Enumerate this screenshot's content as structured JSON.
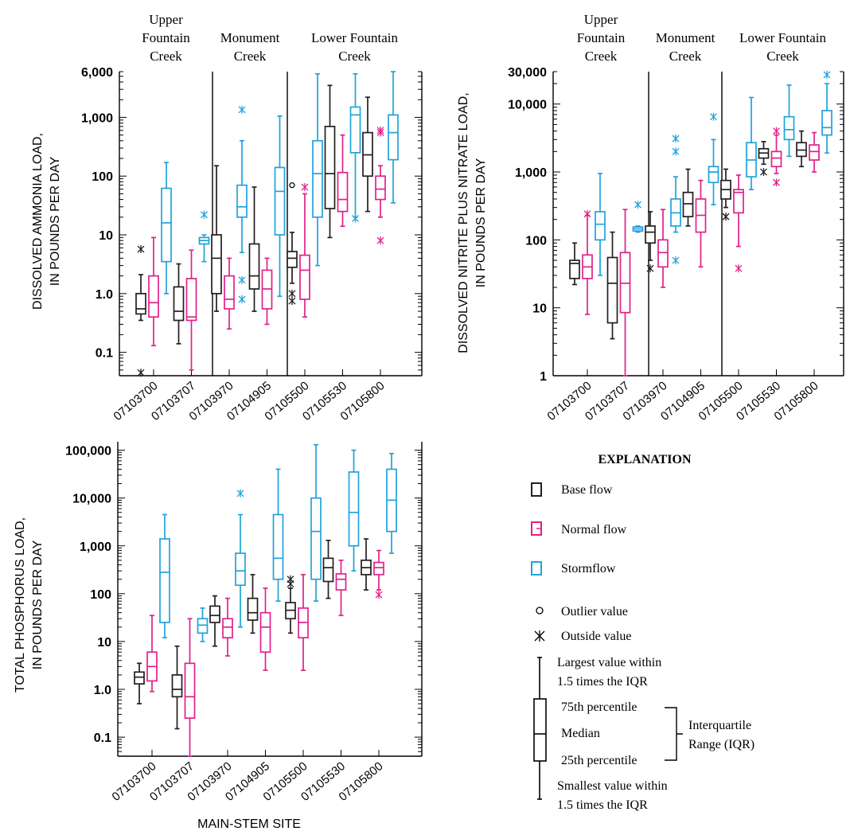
{
  "colors": {
    "base": "#231f20",
    "normal": "#e0218a",
    "storm": "#1fa3dc",
    "axis": "#000000"
  },
  "groups": [
    "Upper Fountain Creek",
    "Monument Creek",
    "Lower Fountain Creek"
  ],
  "sites": [
    "07103700",
    "07103707",
    "07103970",
    "07104905",
    "07105500",
    "07105530",
    "07105800"
  ],
  "xlabel": "MAIN-STEM SITE",
  "explanation": {
    "title": "EXPLANATION",
    "base": "Base flow",
    "normal": "Normal flow",
    "storm": "Stormflow",
    "outlier": "Outlier value",
    "outside": "Outside value",
    "largest": [
      "Largest value within",
      "1.5 times the IQR"
    ],
    "p75": "75th percentile",
    "median": "Median",
    "p25": "25th percentile",
    "smallest": [
      "Smallest value within",
      "1.5 times the IQR"
    ],
    "iqr": [
      "Interquartile",
      "Range (IQR)"
    ]
  },
  "chart_data": [
    {
      "type": "boxplot",
      "ylabel": [
        "DISSOLVED AMMONIA LOAD,",
        "IN POUNDS PER DAY"
      ],
      "yscale": "log",
      "ylim": [
        0.04,
        6000
      ],
      "yticks": [
        0.1,
        1,
        10,
        100,
        1000,
        6000
      ],
      "yticklabels": [
        "0.1",
        "1.0",
        "10",
        "100",
        "1,000",
        "6,000"
      ],
      "group_headers": true,
      "boxes": [
        {
          "site": "07103700",
          "flow": "base",
          "wlo": 0.35,
          "q1": 0.45,
          "med": 0.55,
          "q3": 1.0,
          "whi": 2.1,
          "outside": [
            5.7,
            0.045
          ],
          "outlier": []
        },
        {
          "site": "07103700",
          "flow": "normal",
          "wlo": 0.13,
          "q1": 0.4,
          "med": 0.7,
          "q3": 2.0,
          "whi": 9.0,
          "outside": [],
          "outlier": []
        },
        {
          "site": "07103700",
          "flow": "storm",
          "wlo": 1.0,
          "q1": 3.5,
          "med": 16,
          "q3": 62,
          "whi": 170,
          "outside": [],
          "outlier": []
        },
        {
          "site": "07103707",
          "flow": "base",
          "wlo": 0.14,
          "q1": 0.35,
          "med": 0.5,
          "q3": 1.3,
          "whi": 3.2,
          "outside": [],
          "outlier": []
        },
        {
          "site": "07103707",
          "flow": "normal",
          "wlo": 0.05,
          "q1": 0.35,
          "med": 0.4,
          "q3": 1.8,
          "whi": 5.5,
          "outside": [],
          "outlier": []
        },
        {
          "site": "07103707",
          "flow": "storm",
          "wlo": 3.5,
          "q1": 7.0,
          "med": 8.0,
          "q3": 9.0,
          "whi": 10,
          "outside": [
            22
          ],
          "outlier": []
        },
        {
          "site": "07103970",
          "flow": "base",
          "wlo": 0.5,
          "q1": 1.0,
          "med": 4.0,
          "q3": 10,
          "whi": 150,
          "outside": [],
          "outlier": []
        },
        {
          "site": "07103970",
          "flow": "normal",
          "wlo": 0.25,
          "q1": 0.55,
          "med": 0.8,
          "q3": 2.0,
          "whi": 4.0,
          "outside": [],
          "outlier": []
        },
        {
          "site": "07103970",
          "flow": "storm",
          "wlo": 5.0,
          "q1": 20,
          "med": 30,
          "q3": 70,
          "whi": 400,
          "outside": [
            1350,
            1.7,
            0.8
          ],
          "outlier": []
        },
        {
          "site": "07104905",
          "flow": "base",
          "wlo": 0.5,
          "q1": 1.2,
          "med": 2.0,
          "q3": 7.0,
          "whi": 65,
          "outside": [],
          "outlier": []
        },
        {
          "site": "07104905",
          "flow": "normal",
          "wlo": 0.3,
          "q1": 0.55,
          "med": 1.2,
          "q3": 2.5,
          "whi": 4.0,
          "outside": [],
          "outlier": []
        },
        {
          "site": "07104905",
          "flow": "storm",
          "wlo": 0.9,
          "q1": 10,
          "med": 55,
          "q3": 140,
          "whi": 1050,
          "outside": [],
          "outlier": []
        },
        {
          "site": "07105500",
          "flow": "base",
          "wlo": 1.5,
          "q1": 2.8,
          "med": 4.0,
          "q3": 5.2,
          "whi": 11,
          "outside": [
            1.0,
            0.75
          ],
          "outlier": [
            70
          ]
        },
        {
          "site": "07105500",
          "flow": "normal",
          "wlo": 0.4,
          "q1": 0.8,
          "med": 2.5,
          "q3": 4.5,
          "whi": 50,
          "outside": [
            65
          ],
          "outlier": []
        },
        {
          "site": "07105500",
          "flow": "storm",
          "wlo": 3.0,
          "q1": 20,
          "med": 110,
          "q3": 400,
          "whi": 5500,
          "outside": [],
          "outlier": []
        },
        {
          "site": "07105530",
          "flow": "base",
          "wlo": 9.0,
          "q1": 28,
          "med": 110,
          "q3": 700,
          "whi": 3500,
          "outside": [],
          "outlier": []
        },
        {
          "site": "07105530",
          "flow": "normal",
          "wlo": 14,
          "q1": 25,
          "med": 40,
          "q3": 115,
          "whi": 500,
          "outside": [],
          "outlier": []
        },
        {
          "site": "07105530",
          "flow": "storm",
          "wlo": 20,
          "q1": 250,
          "med": 1100,
          "q3": 1500,
          "whi": 5500,
          "outside": [
            19
          ],
          "outlier": []
        },
        {
          "site": "07105800",
          "flow": "base",
          "wlo": 25,
          "q1": 100,
          "med": 230,
          "q3": 550,
          "whi": 2200,
          "outside": [],
          "outlier": []
        },
        {
          "site": "07105800",
          "flow": "normal",
          "wlo": 20,
          "q1": 40,
          "med": 60,
          "q3": 100,
          "whi": 150,
          "outside": [
            600,
            550,
            8.0
          ],
          "outlier": []
        },
        {
          "site": "07105800",
          "flow": "storm",
          "wlo": 35,
          "q1": 190,
          "med": 550,
          "q3": 1100,
          "whi": 6000,
          "outside": [],
          "outlier": []
        }
      ]
    },
    {
      "type": "boxplot",
      "ylabel": [
        "DISSOLVED NITRITE PLUS NITRATE LOAD,",
        "IN POUNDS PER DAY"
      ],
      "yscale": "log",
      "ylim": [
        1,
        30000
      ],
      "yticks": [
        1,
        10,
        100,
        1000,
        10000,
        30000
      ],
      "yticklabels": [
        "1",
        "10",
        "100",
        "1,000",
        "10,000",
        "30,000"
      ],
      "group_headers": true,
      "boxes": [
        {
          "site": "07103700",
          "flow": "base",
          "wlo": 22,
          "q1": 27,
          "med": 45,
          "q3": 50,
          "whi": 90,
          "outside": [],
          "outlier": []
        },
        {
          "site": "07103700",
          "flow": "normal",
          "wlo": 8.0,
          "q1": 27,
          "med": 40,
          "q3": 60,
          "whi": 230,
          "outside": [
            240
          ],
          "outlier": []
        },
        {
          "site": "07103700",
          "flow": "storm",
          "wlo": 30,
          "q1": 100,
          "med": 170,
          "q3": 260,
          "whi": 950,
          "outside": [],
          "outlier": []
        },
        {
          "site": "07103707",
          "flow": "base",
          "wlo": 3.5,
          "q1": 6.0,
          "med": 23,
          "q3": 55,
          "whi": 130,
          "outside": [],
          "outlier": []
        },
        {
          "site": "07103707",
          "flow": "normal",
          "wlo": 1.0,
          "q1": 8.5,
          "med": 23,
          "q3": 65,
          "whi": 280,
          "outside": [],
          "outlier": []
        },
        {
          "site": "07103707",
          "flow": "storm",
          "wlo": 130,
          "q1": 135,
          "med": 145,
          "q3": 155,
          "whi": 160,
          "outside": [
            330
          ],
          "outlier": []
        },
        {
          "site": "07103970",
          "flow": "base",
          "wlo": 50,
          "q1": 90,
          "med": 130,
          "q3": 160,
          "whi": 260,
          "outside": [
            38
          ],
          "outlier": []
        },
        {
          "site": "07103970",
          "flow": "normal",
          "wlo": 20,
          "q1": 40,
          "med": 65,
          "q3": 100,
          "whi": 280,
          "outside": [],
          "outlier": []
        },
        {
          "site": "07103970",
          "flow": "storm",
          "wlo": 130,
          "q1": 160,
          "med": 250,
          "q3": 400,
          "whi": 850,
          "outside": [
            3100,
            2000,
            50
          ],
          "outlier": []
        },
        {
          "site": "07104905",
          "flow": "base",
          "wlo": 160,
          "q1": 220,
          "med": 340,
          "q3": 500,
          "whi": 1100,
          "outside": [],
          "outlier": []
        },
        {
          "site": "07104905",
          "flow": "normal",
          "wlo": 40,
          "q1": 130,
          "med": 230,
          "q3": 400,
          "whi": 750,
          "outside": [],
          "outlier": []
        },
        {
          "site": "07104905",
          "flow": "storm",
          "wlo": 330,
          "q1": 700,
          "med": 1000,
          "q3": 1200,
          "whi": 3000,
          "outside": [
            6500
          ],
          "outlier": []
        },
        {
          "site": "07105500",
          "flow": "base",
          "wlo": 300,
          "q1": 400,
          "med": 550,
          "q3": 750,
          "whi": 1100,
          "outside": [
            220
          ],
          "outlier": []
        },
        {
          "site": "07105500",
          "flow": "normal",
          "wlo": 80,
          "q1": 250,
          "med": 500,
          "q3": 550,
          "whi": 900,
          "outside": [
            38
          ],
          "outlier": []
        },
        {
          "site": "07105500",
          "flow": "storm",
          "wlo": 550,
          "q1": 850,
          "med": 1500,
          "q3": 2700,
          "whi": 12500,
          "outside": [],
          "outlier": []
        },
        {
          "site": "07105530",
          "flow": "base",
          "wlo": 1300,
          "q1": 1600,
          "med": 1900,
          "q3": 2200,
          "whi": 2800,
          "outside": [
            1000
          ],
          "outlier": []
        },
        {
          "site": "07105530",
          "flow": "normal",
          "wlo": 950,
          "q1": 1200,
          "med": 1600,
          "q3": 2000,
          "whi": 3500,
          "outside": [
            4000,
            700
          ],
          "outlier": []
        },
        {
          "site": "07105530",
          "flow": "storm",
          "wlo": 1700,
          "q1": 3000,
          "med": 4200,
          "q3": 6500,
          "whi": 19000,
          "outside": [],
          "outlier": []
        },
        {
          "site": "07105800",
          "flow": "base",
          "wlo": 1200,
          "q1": 1700,
          "med": 2100,
          "q3": 2700,
          "whi": 4000,
          "outside": [],
          "outlier": []
        },
        {
          "site": "07105800",
          "flow": "normal",
          "wlo": 1000,
          "q1": 1500,
          "med": 2000,
          "q3": 2500,
          "whi": 3800,
          "outside": [],
          "outlier": []
        },
        {
          "site": "07105800",
          "flow": "storm",
          "wlo": 1900,
          "q1": 3500,
          "med": 4500,
          "q3": 8000,
          "whi": 20000,
          "outside": [
            27000
          ],
          "outlier": []
        }
      ]
    },
    {
      "type": "boxplot",
      "ylabel": [
        "TOTAL PHOSPHORUS LOAD,",
        "IN POUNDS PER DAY"
      ],
      "yscale": "log",
      "ylim": [
        0.04,
        150000
      ],
      "yticks": [
        0.1,
        1,
        10,
        100,
        1000,
        10000,
        100000
      ],
      "yticklabels": [
        "0.1",
        "1.0",
        "10",
        "100",
        "1,000",
        "10,000",
        "100,000"
      ],
      "group_headers": false,
      "boxes": [
        {
          "site": "07103700",
          "flow": "base",
          "wlo": 0.5,
          "q1": 1.3,
          "med": 1.8,
          "q3": 2.3,
          "whi": 3.5,
          "outside": [],
          "outlier": []
        },
        {
          "site": "07103700",
          "flow": "normal",
          "wlo": 0.9,
          "q1": 1.5,
          "med": 3.0,
          "q3": 6.0,
          "whi": 35,
          "outside": [],
          "outlier": []
        },
        {
          "site": "07103700",
          "flow": "storm",
          "wlo": 12,
          "q1": 25,
          "med": 280,
          "q3": 1400,
          "whi": 4500,
          "outside": [],
          "outlier": []
        },
        {
          "site": "07103707",
          "flow": "base",
          "wlo": 0.15,
          "q1": 0.7,
          "med": 1.0,
          "q3": 2.0,
          "whi": 8.0,
          "outside": [],
          "outlier": []
        },
        {
          "site": "07103707",
          "flow": "normal",
          "wlo": 0.03,
          "q1": 0.25,
          "med": 0.7,
          "q3": 3.5,
          "whi": 30,
          "outside": [],
          "outlier": []
        },
        {
          "site": "07103707",
          "flow": "storm",
          "wlo": 10,
          "q1": 15,
          "med": 22,
          "q3": 30,
          "whi": 50,
          "outside": [],
          "outlier": []
        },
        {
          "site": "07103970",
          "flow": "base",
          "wlo": 8.0,
          "q1": 25,
          "med": 35,
          "q3": 55,
          "whi": 90,
          "outside": [],
          "outlier": []
        },
        {
          "site": "07103970",
          "flow": "normal",
          "wlo": 5.0,
          "q1": 12,
          "med": 20,
          "q3": 30,
          "whi": 80,
          "outside": [],
          "outlier": []
        },
        {
          "site": "07103970",
          "flow": "storm",
          "wlo": 20,
          "q1": 150,
          "med": 300,
          "q3": 700,
          "whi": 4500,
          "outside": [
            12500
          ],
          "outlier": []
        },
        {
          "site": "07104905",
          "flow": "base",
          "wlo": 15,
          "q1": 28,
          "med": 40,
          "q3": 80,
          "whi": 250,
          "outside": [],
          "outlier": []
        },
        {
          "site": "07104905",
          "flow": "normal",
          "wlo": 2.5,
          "q1": 6.0,
          "med": 20,
          "q3": 40,
          "whi": 130,
          "outside": [],
          "outlier": []
        },
        {
          "site": "07104905",
          "flow": "storm",
          "wlo": 70,
          "q1": 200,
          "med": 550,
          "q3": 4500,
          "whi": 40000,
          "outside": [],
          "outlier": []
        },
        {
          "site": "07105500",
          "flow": "base",
          "wlo": 15,
          "q1": 30,
          "med": 45,
          "q3": 65,
          "whi": 130,
          "outside": [
            200,
            160
          ],
          "outlier": []
        },
        {
          "site": "07105500",
          "flow": "normal",
          "wlo": 2.5,
          "q1": 12,
          "med": 25,
          "q3": 50,
          "whi": 250,
          "outside": [],
          "outlier": []
        },
        {
          "site": "07105500",
          "flow": "storm",
          "wlo": 70,
          "q1": 200,
          "med": 2000,
          "q3": 10000,
          "whi": 130000,
          "outside": [],
          "outlier": []
        },
        {
          "site": "07105530",
          "flow": "base",
          "wlo": 80,
          "q1": 180,
          "med": 350,
          "q3": 550,
          "whi": 1300,
          "outside": [],
          "outlier": []
        },
        {
          "site": "07105530",
          "flow": "normal",
          "wlo": 35,
          "q1": 120,
          "med": 200,
          "q3": 260,
          "whi": 500,
          "outside": [],
          "outlier": []
        },
        {
          "site": "07105530",
          "flow": "storm",
          "wlo": 300,
          "q1": 1000,
          "med": 5000,
          "q3": 35000,
          "whi": 100000,
          "outside": [],
          "outlier": []
        },
        {
          "site": "07105800",
          "flow": "base",
          "wlo": 120,
          "q1": 250,
          "med": 350,
          "q3": 500,
          "whi": 1400,
          "outside": [],
          "outlier": []
        },
        {
          "site": "07105800",
          "flow": "normal",
          "wlo": 120,
          "q1": 250,
          "med": 350,
          "q3": 450,
          "whi": 800,
          "outside": [
            95
          ],
          "outlier": []
        },
        {
          "site": "07105800",
          "flow": "storm",
          "wlo": 700,
          "q1": 2000,
          "med": 9000,
          "q3": 40000,
          "whi": 85000,
          "outside": [],
          "outlier": []
        }
      ]
    }
  ]
}
